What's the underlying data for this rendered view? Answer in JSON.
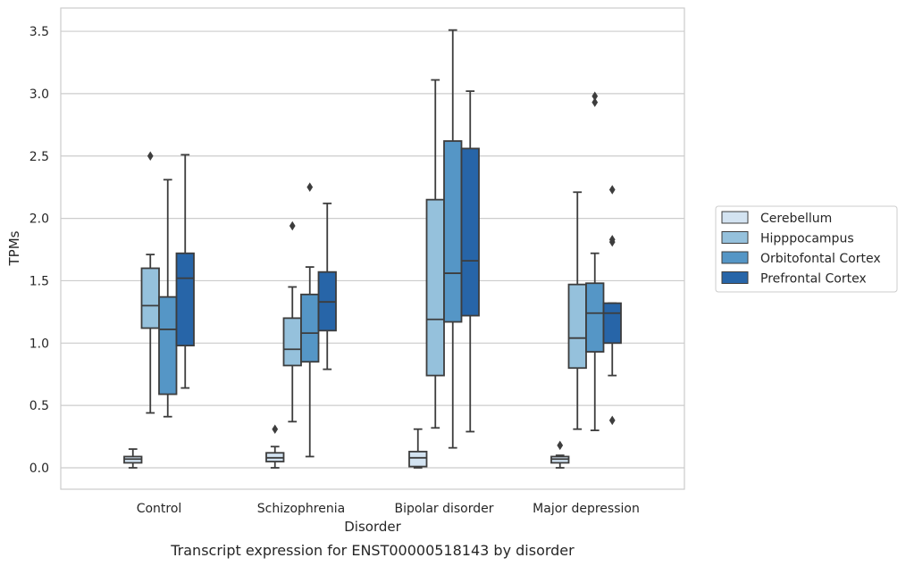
{
  "caption": "Transcript expression for ENST00000518143 by disorder",
  "chart_data": {
    "type": "box",
    "title": "",
    "xlabel": "Disorder",
    "ylabel": "TPMs",
    "ylim": [
      -0.17,
      3.68
    ],
    "yticks": [
      0.0,
      0.5,
      1.0,
      1.5,
      2.0,
      2.5,
      3.0,
      3.5
    ],
    "ytick_labels": [
      "0.0",
      "0.5",
      "1.0",
      "1.5",
      "2.0",
      "2.5",
      "3.0",
      "3.5"
    ],
    "grid": "horizontal",
    "legend_position": "right-center",
    "categories": [
      "Control",
      "Schizophrenia",
      "Bipolar disorder",
      "Major depression"
    ],
    "series": [
      {
        "name": "Cerebellum",
        "color": "#d3e3f1",
        "boxes": [
          {
            "whislo": 0.0,
            "q1": 0.04,
            "med": 0.07,
            "q3": 0.09,
            "whishi": 0.15,
            "fliers": []
          },
          {
            "whislo": 0.0,
            "q1": 0.05,
            "med": 0.08,
            "q3": 0.12,
            "whishi": 0.17,
            "fliers": [
              0.31
            ]
          },
          {
            "whislo": 0.0,
            "q1": 0.01,
            "med": 0.08,
            "q3": 0.13,
            "whishi": 0.31,
            "fliers": []
          },
          {
            "whislo": 0.0,
            "q1": 0.04,
            "med": 0.07,
            "q3": 0.09,
            "whishi": 0.1,
            "fliers": [
              0.18
            ]
          }
        ]
      },
      {
        "name": "Hipppocampus",
        "color": "#95c1dc",
        "boxes": [
          {
            "whislo": 0.44,
            "q1": 1.12,
            "med": 1.3,
            "q3": 1.6,
            "whishi": 1.71,
            "fliers": [
              2.5
            ]
          },
          {
            "whislo": 0.37,
            "q1": 0.82,
            "med": 0.95,
            "q3": 1.2,
            "whishi": 1.45,
            "fliers": [
              1.94
            ]
          },
          {
            "whislo": 0.32,
            "q1": 0.74,
            "med": 1.19,
            "q3": 2.15,
            "whishi": 3.11,
            "fliers": []
          },
          {
            "whislo": 0.31,
            "q1": 0.8,
            "med": 1.04,
            "q3": 1.47,
            "whishi": 2.21,
            "fliers": []
          }
        ]
      },
      {
        "name": "Orbitofontal Cortex",
        "color": "#5596c6",
        "boxes": [
          {
            "whislo": 0.41,
            "q1": 0.59,
            "med": 1.11,
            "q3": 1.37,
            "whishi": 2.31,
            "fliers": []
          },
          {
            "whislo": 0.09,
            "q1": 0.85,
            "med": 1.08,
            "q3": 1.39,
            "whishi": 1.61,
            "fliers": [
              2.25
            ]
          },
          {
            "whislo": 0.16,
            "q1": 1.17,
            "med": 1.56,
            "q3": 2.62,
            "whishi": 3.51,
            "fliers": []
          },
          {
            "whislo": 0.3,
            "q1": 0.93,
            "med": 1.24,
            "q3": 1.48,
            "whishi": 1.72,
            "fliers": [
              2.93,
              2.98
            ]
          }
        ]
      },
      {
        "name": "Prefrontal Cortex",
        "color": "#2765a8",
        "boxes": [
          {
            "whislo": 0.64,
            "q1": 0.98,
            "med": 1.52,
            "q3": 1.72,
            "whishi": 2.51,
            "fliers": []
          },
          {
            "whislo": 0.79,
            "q1": 1.1,
            "med": 1.33,
            "q3": 1.57,
            "whishi": 2.12,
            "fliers": []
          },
          {
            "whislo": 0.29,
            "q1": 1.22,
            "med": 1.66,
            "q3": 2.56,
            "whishi": 3.02,
            "fliers": []
          },
          {
            "whislo": 0.74,
            "q1": 1.0,
            "med": 1.24,
            "q3": 1.32,
            "whishi": 1.32,
            "fliers": [
              0.38,
              1.81,
              1.83,
              2.23
            ]
          }
        ]
      }
    ]
  }
}
